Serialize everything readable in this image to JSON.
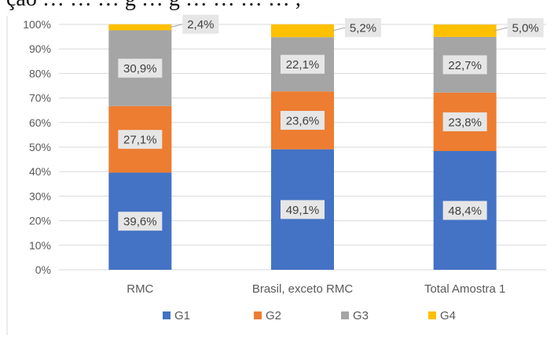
{
  "header": {
    "partial_caption": "ção … … … g … g … … … … ,"
  },
  "chart_data": {
    "type": "bar",
    "stacked": true,
    "categories": [
      "RMC",
      "Brasil, exceto RMC",
      "Total Amostra 1"
    ],
    "series": [
      {
        "name": "G1",
        "values": [
          39.6,
          49.1,
          48.4
        ],
        "labels": [
          "39,6%",
          "49,1%",
          "48,4%"
        ],
        "color": "#4472C4"
      },
      {
        "name": "G2",
        "values": [
          27.1,
          23.6,
          23.8
        ],
        "labels": [
          "27,1%",
          "23,6%",
          "23,8%"
        ],
        "color": "#ED7D31"
      },
      {
        "name": "G3",
        "values": [
          30.9,
          22.1,
          22.7
        ],
        "labels": [
          "30,9%",
          "22,1%",
          "22,7%"
        ],
        "color": "#A5A5A5"
      },
      {
        "name": "G4",
        "values": [
          2.4,
          5.2,
          5.0
        ],
        "labels": [
          "2,4%",
          "5,2%",
          "5,0%"
        ],
        "color": "#FFC000"
      }
    ],
    "yticks": [
      "0%",
      "10%",
      "20%",
      "30%",
      "40%",
      "50%",
      "60%",
      "70%",
      "80%",
      "90%",
      "100%"
    ],
    "ylim": [
      0,
      100
    ],
    "xlabel": "",
    "ylabel": "",
    "grid": true,
    "legend_position": "bottom"
  }
}
